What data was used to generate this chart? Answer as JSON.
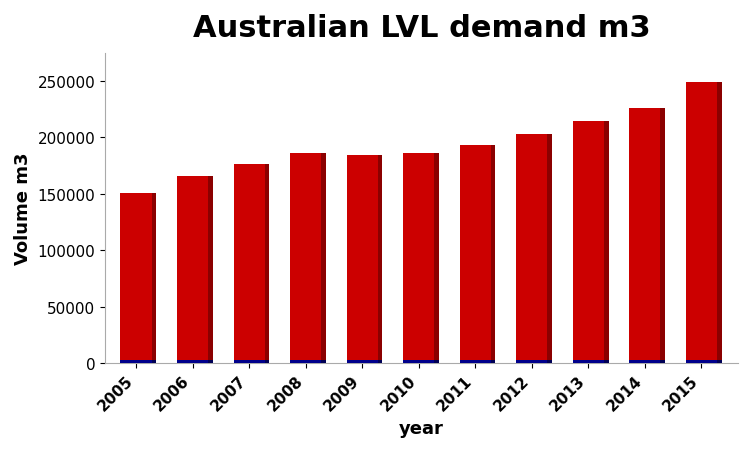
{
  "years": [
    2005,
    2006,
    2007,
    2008,
    2009,
    2010,
    2011,
    2012,
    2013,
    2014,
    2015
  ],
  "red_values": [
    148000,
    163000,
    173000,
    183000,
    181000,
    183000,
    190000,
    200000,
    211000,
    223000,
    246000
  ],
  "blue_values": [
    3000,
    3000,
    3000,
    3000,
    3000,
    3000,
    3000,
    3000,
    3000,
    3000,
    3000
  ],
  "red_face_color": "#CC0000",
  "red_dark_color": "#8B0000",
  "red_top_color": "#B22222",
  "blue_face_color": "#00008B",
  "blue_dark_color": "#000055",
  "title": "Australian LVL demand m3",
  "xlabel": "year",
  "ylabel": "Volume m3",
  "ylim": [
    0,
    275000
  ],
  "yticks": [
    0,
    50000,
    100000,
    150000,
    200000,
    250000
  ],
  "title_fontsize": 22,
  "axis_label_fontsize": 13,
  "tick_fontsize": 11,
  "bar_width": 0.55,
  "depth": 0.15,
  "background_color": "#ffffff"
}
